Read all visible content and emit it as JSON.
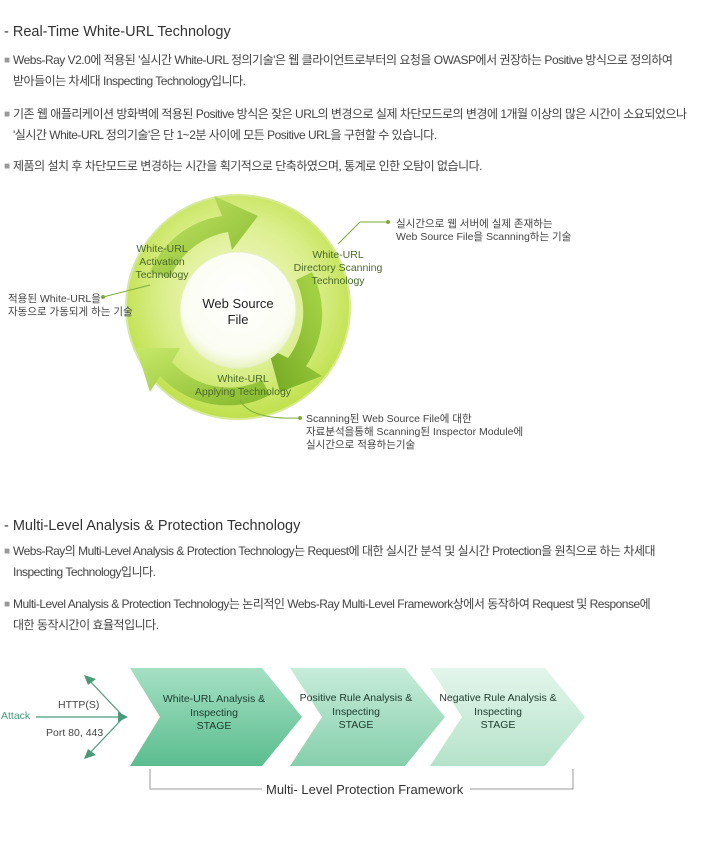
{
  "section1": {
    "title": "-  Real-Time White-URL Technology",
    "bullets": [
      {
        "line1": "Webs-Ray V2.0에 적용된 '실시간 White-URL 정의기술'은 웹 클라이언트로부터의 요청을 OWASP에서 권장하는 Positive 방식으로 정의하여",
        "line2": "받아들이는 차세대 Inspecting Technology입니다."
      },
      {
        "line1": "기존 웹 애플리케이션 방화벽에 적용된 Positive 방식은 잦은 URL의 변경으로 실제 차단모드로의 변경에 1개월 이상의 많은 시간이 소요되었으나",
        "line2": "'실시간 White-URL 정의기술'은 단 1~2분 사이에 모든 Positive URL을 구현할 수 있습니다."
      },
      {
        "line1": "제품의 설치 후 차단모드로 변경하는 시간을 획기적으로 단축하였으며, 통계로 인한 오탐이 없습니다.",
        "line2": ""
      }
    ],
    "diagram": {
      "center_line1": "Web Source",
      "center_line2": "File",
      "activation": [
        "White-URL",
        "Activation",
        "Technology"
      ],
      "directory": [
        "White-URL",
        "Directory Scanning",
        "Technology"
      ],
      "applying": [
        "White-URL",
        "Applying Technology"
      ],
      "note_left": [
        "적용된 White-URL을",
        "자동으로 가동되게 하는 기술"
      ],
      "note_top_right": [
        "실시간으로 웹 서버에 실제 존재하는",
        "Web Source File을 Scanning하는 기술"
      ],
      "note_bottom": [
        "Scanning된 Web Source File에 대한",
        "자료분석을통해 Scanning된 Inspector Module에",
        "실시간으로 적용하는기술"
      ],
      "colors": {
        "ring_light": "#e4f2a6",
        "ring_dark": "#a9cf3c",
        "arrow": "#8dc02c",
        "center": "#ffffff"
      }
    }
  },
  "section2": {
    "title": "- Multi-Level Analysis & Protection Technology",
    "bullets": [
      {
        "line1": "Webs-Ray의 Multi-Level Analysis & Protection Technology는 Request에 대한 실시간 분석 및 실시간 Protection을 원칙으로 하는 차세대",
        "line2": "Inspecting Technology입니다."
      },
      {
        "line1": "Multi-Level Analysis & Protection Technology는 논리적인 Webs-Ray Multi-Level Framework상에서 동작하여 Request 및 Response에",
        "line2": "대한 동작시간이 효율적입니다."
      }
    ],
    "flow": {
      "attack": "Attack",
      "protocol": "HTTP(S)",
      "ports": "Port 80, 443",
      "stages": [
        {
          "line1": "White-URL Analysis &",
          "line2": "Inspecting",
          "line3": "STAGE"
        },
        {
          "line1": "Positive Rule Analysis &",
          "line2": "Inspecting",
          "line3": "STAGE"
        },
        {
          "line1": "Negative Rule Analysis &",
          "line2": "Inspecting",
          "line3": "STAGE"
        }
      ],
      "framework_label": "Multi- Level Protection Framework",
      "colors": {
        "stage1": "#6fc79e",
        "stage2": "#9fdac0",
        "stage3": "#cdeedd",
        "attack_text": "#4a9a7a"
      }
    }
  }
}
